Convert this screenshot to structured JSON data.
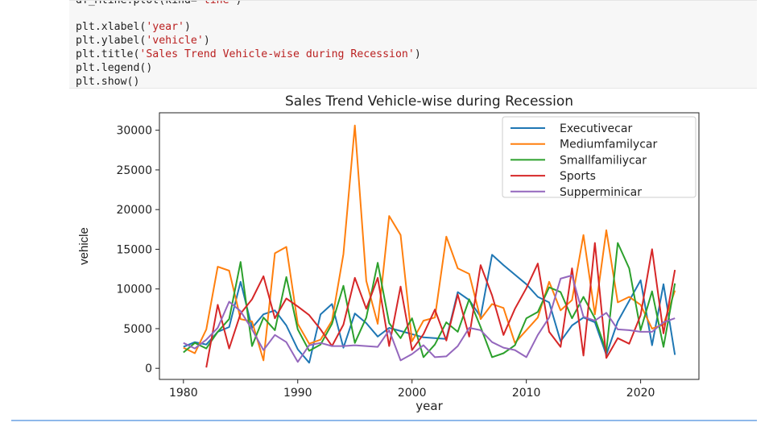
{
  "code": {
    "line0": {
      "pre": "df_Mline.plot(kind='",
      "str": "line",
      "post": "')"
    },
    "line1": {
      "fn": "plt.xlabel(",
      "str": "'year'",
      "post": ")"
    },
    "line2": {
      "fn": "plt.ylabel(",
      "str": "'vehicle'",
      "post": ")"
    },
    "line3": {
      "fn": "plt.title(",
      "str": "'Sales Trend Vehicle-wise during Recession'",
      "post": ")"
    },
    "line4": {
      "fn": "plt.legend",
      "post": "()"
    },
    "line5": {
      "fn": "plt.show",
      "post": "()"
    }
  },
  "chart_data": {
    "type": "line",
    "title": "Sales Trend Vehicle-wise during Recession",
    "xlabel": "year",
    "ylabel": "vehicle",
    "xlim": [
      1977.9,
      2025.1
    ],
    "ylim": [
      -1400,
      32200
    ],
    "xticks": [
      1980,
      1990,
      2000,
      2010,
      2020
    ],
    "yticks": [
      0,
      5000,
      10000,
      15000,
      20000,
      25000,
      30000
    ],
    "legend_position": "top-right",
    "series": [
      {
        "name": "Executivecar",
        "color": "#1f77b4",
        "points": [
          [
            1980,
            2700
          ],
          [
            1981,
            3300
          ],
          [
            1982,
            3000
          ],
          [
            1983,
            4600
          ],
          [
            1984,
            5200
          ],
          [
            1985,
            10900
          ],
          [
            1986,
            5100
          ],
          [
            1987,
            6800
          ],
          [
            1988,
            7300
          ],
          [
            1989,
            5400
          ],
          [
            1990,
            2400
          ],
          [
            1991,
            700
          ],
          [
            1992,
            6800
          ],
          [
            1993,
            8100
          ],
          [
            1994,
            2600
          ],
          [
            1995,
            6900
          ],
          [
            1996,
            5700
          ],
          [
            1997,
            4000
          ],
          [
            1998,
            5100
          ],
          [
            1999,
            4700
          ],
          [
            2000,
            4300
          ],
          [
            2001,
            3900
          ],
          [
            2002,
            3800
          ],
          [
            2003,
            3700
          ],
          [
            2004,
            9600
          ],
          [
            2005,
            8600
          ],
          [
            2006,
            6500
          ],
          [
            2007,
            14300
          ],
          [
            2008,
            13000
          ],
          [
            2009,
            11800
          ],
          [
            2010,
            10600
          ],
          [
            2011,
            9000
          ],
          [
            2012,
            8300
          ],
          [
            2013,
            3400
          ],
          [
            2014,
            5400
          ],
          [
            2015,
            6400
          ],
          [
            2016,
            5800
          ],
          [
            2017,
            1700
          ],
          [
            2018,
            5900
          ],
          [
            2019,
            8500
          ],
          [
            2020,
            11100
          ],
          [
            2021,
            2900
          ],
          [
            2022,
            10600
          ],
          [
            2023,
            1700
          ]
        ]
      },
      {
        "name": "Mediumfamilycar",
        "color": "#ff7f0e",
        "points": [
          [
            1980,
            2600
          ],
          [
            1981,
            1900
          ],
          [
            1982,
            4900
          ],
          [
            1983,
            12800
          ],
          [
            1984,
            12300
          ],
          [
            1985,
            6200
          ],
          [
            1986,
            5900
          ],
          [
            1987,
            1000
          ],
          [
            1988,
            14500
          ],
          [
            1989,
            15300
          ],
          [
            1990,
            5600
          ],
          [
            1991,
            3100
          ],
          [
            1992,
            3600
          ],
          [
            1993,
            6000
          ],
          [
            1994,
            14400
          ],
          [
            1995,
            30600
          ],
          [
            1996,
            11000
          ],
          [
            1997,
            5600
          ],
          [
            1998,
            19200
          ],
          [
            1999,
            16800
          ],
          [
            2000,
            3400
          ],
          [
            2001,
            6000
          ],
          [
            2002,
            6400
          ],
          [
            2003,
            16600
          ],
          [
            2004,
            12600
          ],
          [
            2005,
            11900
          ],
          [
            2006,
            6200
          ],
          [
            2007,
            8100
          ],
          [
            2008,
            7600
          ],
          [
            2009,
            3200
          ],
          [
            2010,
            4800
          ],
          [
            2011,
            6400
          ],
          [
            2012,
            10900
          ],
          [
            2013,
            7300
          ],
          [
            2014,
            8600
          ],
          [
            2015,
            16800
          ],
          [
            2016,
            6800
          ],
          [
            2017,
            17400
          ],
          [
            2018,
            8300
          ],
          [
            2019,
            9000
          ],
          [
            2020,
            8000
          ],
          [
            2021,
            5000
          ],
          [
            2022,
            5500
          ],
          [
            2023,
            9800
          ]
        ]
      },
      {
        "name": "Smallfamiliycar",
        "color": "#2ca02c",
        "points": [
          [
            1980,
            2000
          ],
          [
            1981,
            3200
          ],
          [
            1982,
            2500
          ],
          [
            1983,
            4600
          ],
          [
            1984,
            6200
          ],
          [
            1985,
            13400
          ],
          [
            1986,
            2800
          ],
          [
            1987,
            6400
          ],
          [
            1988,
            4800
          ],
          [
            1989,
            11500
          ],
          [
            1990,
            4900
          ],
          [
            1991,
            2200
          ],
          [
            1992,
            3000
          ],
          [
            1993,
            5600
          ],
          [
            1994,
            10400
          ],
          [
            1995,
            3200
          ],
          [
            1996,
            6400
          ],
          [
            1997,
            13300
          ],
          [
            1998,
            5700
          ],
          [
            1999,
            3800
          ],
          [
            2000,
            6300
          ],
          [
            2001,
            1400
          ],
          [
            2002,
            3000
          ],
          [
            2003,
            5800
          ],
          [
            2004,
            4600
          ],
          [
            2005,
            8700
          ],
          [
            2006,
            5200
          ],
          [
            2007,
            1400
          ],
          [
            2008,
            1900
          ],
          [
            2009,
            2900
          ],
          [
            2010,
            6300
          ],
          [
            2011,
            7100
          ],
          [
            2012,
            10200
          ],
          [
            2013,
            9600
          ],
          [
            2014,
            6300
          ],
          [
            2015,
            9000
          ],
          [
            2016,
            6300
          ],
          [
            2017,
            2100
          ],
          [
            2018,
            15800
          ],
          [
            2019,
            12600
          ],
          [
            2020,
            4800
          ],
          [
            2021,
            9700
          ],
          [
            2022,
            2700
          ],
          [
            2023,
            10700
          ]
        ]
      },
      {
        "name": "Sports",
        "color": "#d62728",
        "points": [
          [
            1982,
            100
          ],
          [
            1983,
            8000
          ],
          [
            1984,
            2500
          ],
          [
            1985,
            6900
          ],
          [
            1986,
            8700
          ],
          [
            1987,
            11600
          ],
          [
            1988,
            6300
          ],
          [
            1989,
            8800
          ],
          [
            1990,
            7800
          ],
          [
            1991,
            6700
          ],
          [
            1992,
            4900
          ],
          [
            1993,
            2800
          ],
          [
            1994,
            5500
          ],
          [
            1995,
            11400
          ],
          [
            1996,
            7500
          ],
          [
            1997,
            11400
          ],
          [
            1998,
            2800
          ],
          [
            1999,
            10300
          ],
          [
            2000,
            2300
          ],
          [
            2001,
            4300
          ],
          [
            2002,
            7400
          ],
          [
            2003,
            3500
          ],
          [
            2004,
            9300
          ],
          [
            2005,
            4000
          ],
          [
            2006,
            13000
          ],
          [
            2007,
            9200
          ],
          [
            2008,
            4200
          ],
          [
            2009,
            7500
          ],
          [
            2010,
            10100
          ],
          [
            2011,
            13200
          ],
          [
            2012,
            4600
          ],
          [
            2013,
            2700
          ],
          [
            2014,
            12600
          ],
          [
            2015,
            1600
          ],
          [
            2016,
            15800
          ],
          [
            2017,
            1300
          ],
          [
            2018,
            3800
          ],
          [
            2019,
            3100
          ],
          [
            2020,
            6700
          ],
          [
            2021,
            15000
          ],
          [
            2022,
            4400
          ],
          [
            2023,
            12400
          ]
        ]
      },
      {
        "name": "Supperminicar",
        "color": "#9467bd",
        "points": [
          [
            1980,
            3200
          ],
          [
            1981,
            2500
          ],
          [
            1982,
            3600
          ],
          [
            1983,
            5100
          ],
          [
            1984,
            8400
          ],
          [
            1985,
            7200
          ],
          [
            1986,
            4900
          ],
          [
            1987,
            2300
          ],
          [
            1988,
            4200
          ],
          [
            1989,
            3300
          ],
          [
            1990,
            800
          ],
          [
            1991,
            2900
          ],
          [
            1992,
            3200
          ],
          [
            1993,
            2800
          ],
          [
            1994,
            2800
          ],
          [
            1995,
            2900
          ],
          [
            1996,
            2800
          ],
          [
            1997,
            2700
          ],
          [
            1998,
            4800
          ],
          [
            1999,
            1000
          ],
          [
            2000,
            1800
          ],
          [
            2001,
            2900
          ],
          [
            2002,
            1400
          ],
          [
            2003,
            1500
          ],
          [
            2004,
            2800
          ],
          [
            2005,
            5100
          ],
          [
            2006,
            4800
          ],
          [
            2007,
            3300
          ],
          [
            2008,
            2600
          ],
          [
            2009,
            2300
          ],
          [
            2010,
            1400
          ],
          [
            2011,
            4200
          ],
          [
            2012,
            6400
          ],
          [
            2013,
            11300
          ],
          [
            2014,
            11700
          ],
          [
            2015,
            6500
          ],
          [
            2016,
            6000
          ],
          [
            2017,
            7000
          ],
          [
            2018,
            4900
          ],
          [
            2019,
            4800
          ],
          [
            2020,
            4600
          ],
          [
            2021,
            4600
          ],
          [
            2022,
            5800
          ],
          [
            2023,
            6300
          ]
        ]
      }
    ]
  }
}
